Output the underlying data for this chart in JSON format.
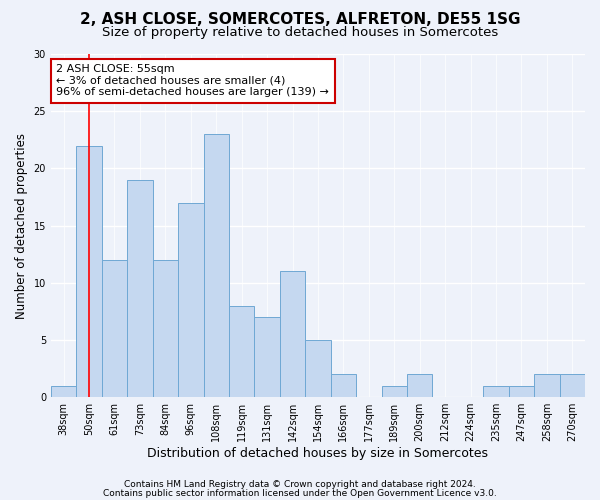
{
  "title": "2, ASH CLOSE, SOMERCOTES, ALFRETON, DE55 1SG",
  "subtitle": "Size of property relative to detached houses in Somercotes",
  "xlabel": "Distribution of detached houses by size in Somercotes",
  "ylabel": "Number of detached properties",
  "categories": [
    "38sqm",
    "50sqm",
    "61sqm",
    "73sqm",
    "84sqm",
    "96sqm",
    "108sqm",
    "119sqm",
    "131sqm",
    "142sqm",
    "154sqm",
    "166sqm",
    "177sqm",
    "189sqm",
    "200sqm",
    "212sqm",
    "224sqm",
    "235sqm",
    "247sqm",
    "258sqm",
    "270sqm"
  ],
  "values": [
    1,
    22,
    12,
    19,
    12,
    17,
    23,
    8,
    7,
    11,
    5,
    2,
    0,
    1,
    2,
    0,
    0,
    1,
    1,
    2,
    2
  ],
  "bar_color": "#c5d8f0",
  "bar_edge_color": "#6fa8d4",
  "red_line_x": 1,
  "ylim": [
    0,
    30
  ],
  "yticks": [
    0,
    5,
    10,
    15,
    20,
    25,
    30
  ],
  "annotation_line1": "2 ASH CLOSE: 55sqm",
  "annotation_line2": "← 3% of detached houses are smaller (4)",
  "annotation_line3": "96% of semi-detached houses are larger (139) →",
  "annotation_box_color": "#ffffff",
  "annotation_box_edge": "#cc0000",
  "footer1": "Contains HM Land Registry data © Crown copyright and database right 2024.",
  "footer2": "Contains public sector information licensed under the Open Government Licence v3.0.",
  "background_color": "#eef2fa",
  "grid_color": "#ffffff",
  "title_fontsize": 11,
  "subtitle_fontsize": 9.5,
  "xlabel_fontsize": 9,
  "ylabel_fontsize": 8.5,
  "tick_fontsize": 7,
  "footer_fontsize": 6.5,
  "annotation_fontsize": 8
}
